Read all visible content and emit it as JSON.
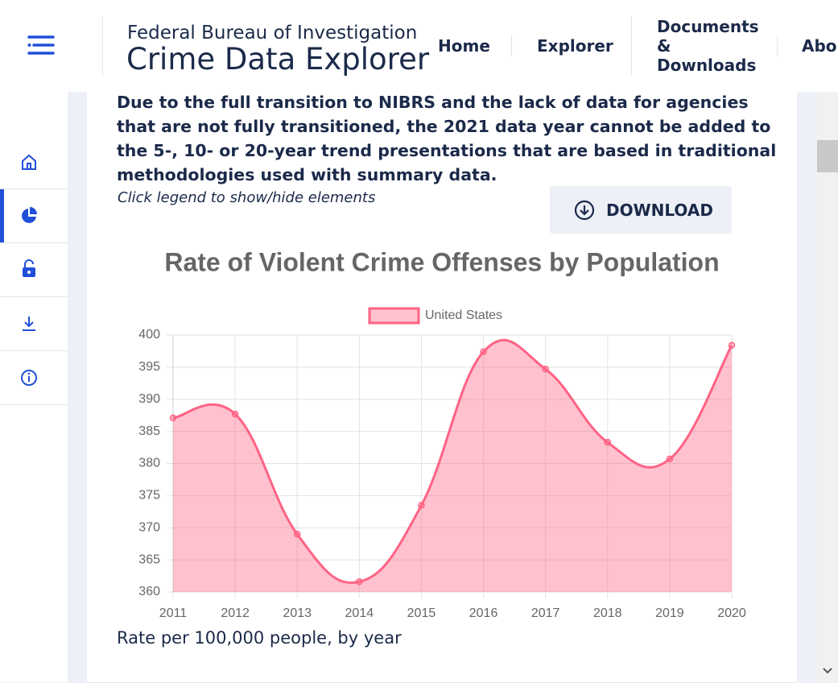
{
  "header": {
    "agency": "Federal Bureau of Investigation",
    "title": "Crime Data Explorer",
    "nav": [
      "Home",
      "Explorer",
      "Documents & Downloads",
      "About"
    ]
  },
  "notice": "Due to the full transition to NIBRS and the lack of data for agencies that are not fully transitioned, the 2021 data year cannot be added to the 5-, 10- or 20-year trend presentations that are based in traditional methodologies used with summary data.",
  "hint": "Click legend to show/hide elements",
  "download": "DOWNLOAD",
  "chart_data": {
    "type": "line",
    "title": "Rate of Violent Crime Offenses by Population",
    "categories": [
      "2011",
      "2012",
      "2013",
      "2014",
      "2015",
      "2016",
      "2017",
      "2018",
      "2019",
      "2020"
    ],
    "series": [
      {
        "name": "United States",
        "color": "#ff6384",
        "area_color": "rgba(255,99,132,0.4)",
        "values": [
          387.1,
          387.7,
          369.0,
          361.6,
          373.5,
          397.4,
          394.7,
          383.3,
          380.7,
          398.4
        ]
      }
    ],
    "ylim": [
      360,
      400
    ],
    "yticks": [
      360,
      365,
      370,
      375,
      380,
      385,
      390,
      395,
      400
    ],
    "grid": true,
    "legend": "top"
  },
  "caption": "Rate per 100,000 people, by year"
}
